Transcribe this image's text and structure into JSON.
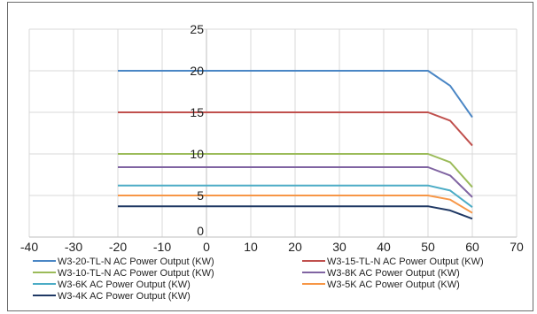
{
  "chart_data": {
    "type": "line",
    "title": "",
    "xlabel": "",
    "ylabel": "",
    "xlim": [
      -40,
      70
    ],
    "ylim": [
      0,
      25
    ],
    "x_ticks": [
      -40,
      -30,
      -20,
      -10,
      0,
      10,
      20,
      30,
      40,
      50,
      60,
      70
    ],
    "y_ticks": [
      0,
      5,
      10,
      15,
      20,
      25
    ],
    "x_tick_labels": [
      "-40",
      "-30",
      "-20",
      "-10",
      "0",
      "10",
      "20",
      "30",
      "40",
      "50",
      "60",
      "70"
    ],
    "y_tick_labels": [
      "0",
      "5",
      "10",
      "15",
      "20",
      "25"
    ],
    "grid": "vertical and horizontal",
    "legend_position": "bottom",
    "series": [
      {
        "name": "W3-20-TL-N AC Power Output (KW)",
        "color": "#4a86c5",
        "x": [
          -20,
          50,
          55,
          60
        ],
        "y": [
          20,
          20,
          18.2,
          14.4
        ]
      },
      {
        "name": "W3-15-TL-N AC Power Output (KW)",
        "color": "#c0504d",
        "x": [
          -20,
          50,
          55,
          60
        ],
        "y": [
          15,
          15,
          14,
          11
        ]
      },
      {
        "name": "W3-10-TL-N AC Power Output (KW)",
        "color": "#9bbb59",
        "x": [
          -20,
          50,
          55,
          60
        ],
        "y": [
          10,
          10,
          9,
          6
        ]
      },
      {
        "name": "W3-8K AC Power Output (KW)",
        "color": "#8064a2",
        "x": [
          -20,
          50,
          55,
          60
        ],
        "y": [
          8.4,
          8.4,
          7.4,
          4.8
        ]
      },
      {
        "name": "W3-6K AC Power Output (KW)",
        "color": "#4bacc6",
        "x": [
          -20,
          50,
          55,
          60
        ],
        "y": [
          6.2,
          6.2,
          5.6,
          3.6
        ]
      },
      {
        "name": "W3-5K AC Power Output (KW)",
        "color": "#f79646",
        "x": [
          -20,
          50,
          55,
          60
        ],
        "y": [
          5,
          5,
          4.5,
          2.9
        ]
      },
      {
        "name": "W3-4K AC Power Output (KW)",
        "color": "#1f3864",
        "x": [
          -20,
          50,
          55,
          60
        ],
        "y": [
          3.7,
          3.7,
          3.2,
          2.2
        ]
      }
    ]
  }
}
